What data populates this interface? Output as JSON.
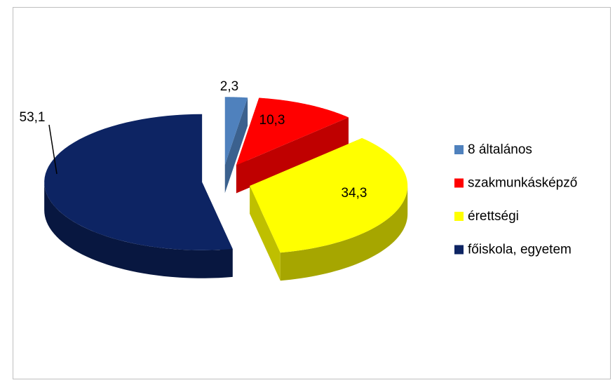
{
  "chart_data": {
    "type": "pie3d",
    "categories": [
      "8 általános",
      "szakmunkásképző",
      "érettségi",
      "főiskola, egyetem"
    ],
    "values": [
      2.3,
      10.3,
      34.3,
      53.1
    ],
    "value_labels": [
      "2,3",
      "10,3",
      "34,3",
      "53,1"
    ],
    "colors": [
      "#4f81bd",
      "#ff0000",
      "#ffff00",
      "#0d2463"
    ],
    "legend": "right"
  }
}
